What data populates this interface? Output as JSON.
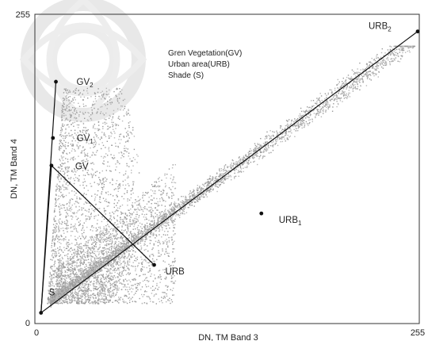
{
  "chart_data": {
    "type": "scatter",
    "title": "",
    "xlabel": "DN, TM Band 3",
    "ylabel": "DN, TM Band 4",
    "xlim": [
      0,
      255
    ],
    "ylim": [
      0,
      255
    ],
    "x_ticks": [
      "0",
      "255"
    ],
    "y_ticks": [
      "0",
      "255"
    ],
    "grid": false,
    "legend": {
      "placement": "top-center",
      "entries": [
        "Gren Vegetation(GV)",
        "Urban area(URB)",
        "Shade (S)"
      ]
    },
    "colors": {
      "scatter": "#9a9a9a",
      "scatter_dense": "#b8b8b8",
      "lines": "#111111",
      "points": "#111111",
      "watermark": "#d6d6d6"
    },
    "endmember_points": [
      {
        "id": "S",
        "label": "S",
        "sub": "",
        "x": 2,
        "y": 7
      },
      {
        "id": "GV",
        "label": "GV",
        "sub": "",
        "x": 9,
        "y": 130
      },
      {
        "id": "GV1",
        "label": "GV",
        "sub": "1",
        "x": 10,
        "y": 153
      },
      {
        "id": "GV2",
        "label": "GV",
        "sub": "2",
        "x": 12,
        "y": 200
      },
      {
        "id": "URB",
        "label": "URB",
        "sub": "",
        "x": 78,
        "y": 47
      },
      {
        "id": "URB1",
        "label": "URB",
        "sub": "1",
        "x": 150,
        "y": 90
      },
      {
        "id": "URB2",
        "label": "URB",
        "sub": "2",
        "x": 255,
        "y": 242
      }
    ],
    "segments": [
      [
        "S",
        "URB2"
      ],
      [
        "S",
        "GV2"
      ],
      [
        "S",
        "GV"
      ],
      [
        "GV",
        "URB"
      ]
    ],
    "scatter_clusters": [
      {
        "name": "vegetation-arm",
        "x_range": [
          8,
          45
        ],
        "y_range": [
          20,
          200
        ],
        "density": "high"
      },
      {
        "name": "core",
        "x_range": [
          8,
          90
        ],
        "y_range": [
          15,
          150
        ],
        "density": "high"
      },
      {
        "name": "urban-arm",
        "x_range": [
          60,
          255
        ],
        "y_range": [
          25,
          220
        ],
        "density": "medium"
      }
    ]
  }
}
